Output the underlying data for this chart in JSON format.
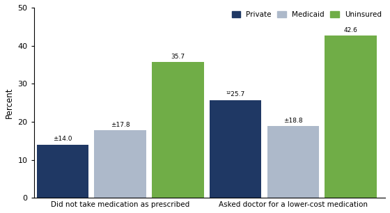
{
  "categories": [
    "Did not take medication as prescribed",
    "Asked doctor for a lower-cost medication"
  ],
  "series": [
    {
      "name": "Private",
      "values": [
        14.0,
        25.7
      ],
      "color": "#1f3864"
    },
    {
      "name": "Medicaid",
      "values": [
        17.8,
        18.8
      ],
      "color": "#adb9ca"
    },
    {
      "name": "Uninsured",
      "values": [
        35.7,
        42.6
      ],
      "color": "#70ad47"
    }
  ],
  "labels": [
    [
      "±14.0",
      "±17.8",
      "35.7"
    ],
    [
      "¹²25.7",
      "±18.8",
      "42.6"
    ]
  ],
  "ylabel": "Percent",
  "ylim": [
    0,
    50
  ],
  "yticks": [
    0,
    10,
    20,
    30,
    40,
    50
  ],
  "bar_width": 0.18,
  "background_color": "#ffffff",
  "legend_labels": [
    "Private",
    "Medicaid",
    "Uninsured"
  ],
  "legend_colors": [
    "#1f3864",
    "#adb9ca",
    "#70ad47"
  ]
}
